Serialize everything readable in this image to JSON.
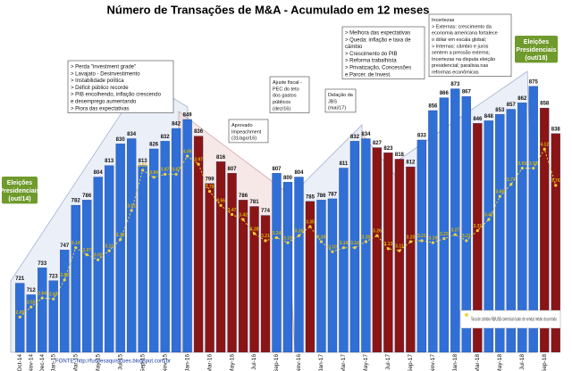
{
  "chart_data": {
    "type": "bar",
    "title": "Número de Transações de M&A - Acumulado em 12 meses",
    "categories": [
      "Oct-14",
      "Nov-14",
      "Dec-14",
      "Jan-15",
      null,
      "Mar-15",
      null,
      "May-15",
      null,
      "Jul-15",
      null,
      "Sep-15",
      null,
      "Nov-15",
      null,
      "Jan-16",
      null,
      "Mar-16",
      null,
      "May-16",
      null,
      "Jul-16",
      null,
      "Sep-16",
      null,
      "Nov-16",
      null,
      "Jan-17",
      null,
      "Mar-17",
      null,
      "May-17",
      null,
      "Jul-17",
      null,
      "Sep-17",
      null,
      "Nov-17",
      null,
      "Jan-18",
      null,
      "Mar-18",
      null,
      "May-18",
      null,
      "Jul-18",
      null,
      "Sep-18",
      null
    ],
    "ylim": [
      667,
      895
    ],
    "y2lim": [
      2.1,
      5.0
    ],
    "series": [
      {
        "name": "Número de Transações",
        "colors": [
          "#2f6fd6",
          "#2f6fd6",
          "#2f6fd6",
          "#2f6fd6",
          "#2f6fd6",
          "#2f6fd6",
          "#2f6fd6",
          "#2f6fd6",
          "#2f6fd6",
          "#2f6fd6",
          "#2f6fd6",
          "#2f6fd6",
          "#2f6fd6",
          "#2f6fd6",
          "#2f6fd6",
          "#2f6fd6",
          "#8b1414",
          "#8b1414",
          "#8b1414",
          "#8b1414",
          "#8b1414",
          "#8b1414",
          "#8b1414",
          "#2f6fd6",
          "#2f6fd6",
          "#2f6fd6",
          "#8b1414",
          "#2f6fd6",
          "#2f6fd6",
          "#2f6fd6",
          "#2f6fd6",
          "#2f6fd6",
          "#8b1414",
          "#8b1414",
          "#8b1414",
          "#8b1414",
          "#2f6fd6",
          "#2f6fd6",
          "#2f6fd6",
          "#2f6fd6",
          "#2f6fd6",
          "#8b1414",
          "#2f6fd6",
          "#2f6fd6",
          "#2f6fd6",
          "#2f6fd6",
          "#2f6fd6",
          "#8b1414",
          "#8b1414"
        ],
        "values": [
          721,
          712,
          733,
          723,
          747,
          782,
          786,
          804,
          813,
          830,
          834,
          813,
          826,
          832,
          842,
          849,
          836,
          799,
          816,
          807,
          786,
          781,
          774,
          807,
          800,
          804,
          785,
          786,
          787,
          811,
          832,
          834,
          827,
          823,
          818,
          812,
          833,
          856,
          866,
          873,
          867,
          846,
          848,
          853,
          857,
          862,
          875,
          858,
          838
        ]
      },
      {
        "name": "Taxa de câmbio R$/US$ comercial (valor de venda) médio do período",
        "axis": "y2",
        "color": "#f2d33a",
        "values": [
          2.45,
          2.55,
          2.64,
          2.63,
          2.82,
          3.14,
          3.07,
          3.02,
          3.11,
          3.22,
          3.51,
          3.91,
          3.84,
          3.87,
          3.87,
          4.05,
          3.97,
          3.7,
          3.56,
          3.47,
          3.42,
          3.28,
          3.21,
          3.24,
          3.19,
          3.26,
          3.35,
          3.2,
          3.1,
          3.14,
          3.14,
          3.2,
          3.26,
          3.13,
          3.11,
          3.2,
          3.21,
          3.19,
          3.23,
          3.27,
          3.21,
          3.31,
          3.42,
          3.65,
          3.77,
          3.93,
          3.93,
          4.12,
          3.76
        ],
        "value_labels": [
          "2.45",
          "2.55",
          "2.64",
          "2.63",
          "2.82",
          "3.14",
          "3.07",
          "3.02",
          "3.11",
          "3.22",
          "3.51",
          "3.91",
          "3.84",
          "3.87",
          "3.87",
          "4.05",
          "3.97",
          "3.70",
          "3.56",
          "3.47",
          "3.42",
          "3.28",
          "3.21",
          "3.24",
          "3.19",
          "3.26",
          "3.35",
          "3.20",
          "3.10",
          "3.14",
          "3.14",
          "3.20",
          "3.26",
          "3.13",
          "3.11",
          "3.20",
          "3.21",
          "3.19",
          "3.23",
          "3.27",
          "3.21",
          "3.31",
          "3.42",
          "3.65",
          "3.77",
          "3.93",
          "3.93",
          "4.12",
          "3.76"
        ]
      }
    ],
    "annotations": [
      {
        "lines": [
          "> Perda \"investment grade\"",
          "> Lavajato - Desinvestimento",
          "> Instabilidade política",
          "> Déficit público recorde",
          "> PIB encolhendo, inflação crescendo",
          "   e desemprego aumentando",
          "> Piora das expectativas"
        ]
      },
      {
        "lines": [
          "Eleições",
          "Presidenciais",
          "(out/14)"
        ]
      },
      {
        "lines": [
          "Aprovado",
          "Impeachment",
          "(31/ago/16)"
        ]
      },
      {
        "lines": [
          "Ajuste fiscal -",
          "PEC do teto",
          "dos gastos",
          "públicos",
          "(dez/16)"
        ]
      },
      {
        "lines": [
          "Delação da",
          "JBS",
          "(mai/17)"
        ]
      },
      {
        "lines": [
          "> Melhora das expectativas",
          "> Queda: inflação e taxa de",
          "   câmbio",
          "> Crescimento do PIB",
          "> Reforma trabalhista",
          "> Privatização, Concessões",
          "   e Parcer. de Invest."
        ]
      },
      {
        "lines": [
          "Incertezas",
          "> Externas: crescimento da",
          "economia americana fortalece",
          "o dólar em escala global;",
          "> Internas: câmbio e juros",
          "sentem a pressão externa;",
          "Incertezas na disputa eleição",
          "presidencial; paralisia nas",
          "reformas econômicas"
        ]
      },
      {
        "lines": [
          "Eleições",
          "Presidenciais",
          "(out/18)"
        ]
      }
    ],
    "source": "FONTE: http://fusoesaquisicoes.blogspot.com.br"
  }
}
